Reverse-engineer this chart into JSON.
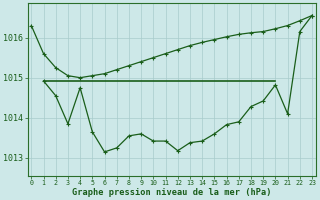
{
  "line1": {
    "x": [
      0,
      1,
      2,
      3,
      4,
      5,
      6,
      7,
      8,
      9,
      10,
      11,
      12,
      13,
      14,
      15,
      16,
      17,
      18,
      19,
      20,
      21,
      22,
      23
    ],
    "y": [
      1016.3,
      1015.6,
      1015.25,
      1015.05,
      1015.0,
      1015.05,
      1015.1,
      1015.2,
      1015.3,
      1015.4,
      1015.5,
      1015.6,
      1015.7,
      1015.8,
      1015.88,
      1015.95,
      1016.02,
      1016.08,
      1016.12,
      1016.15,
      1016.22,
      1016.3,
      1016.42,
      1016.55
    ]
  },
  "line2": {
    "x": [
      1,
      2,
      3,
      4,
      5,
      6,
      7,
      8,
      9,
      10,
      11,
      12,
      13,
      14,
      15,
      16,
      17,
      18,
      19,
      20
    ],
    "y": [
      1014.92,
      1014.92,
      1014.92,
      1014.92,
      1014.92,
      1014.92,
      1014.92,
      1014.92,
      1014.92,
      1014.92,
      1014.92,
      1014.92,
      1014.92,
      1014.92,
      1014.92,
      1014.92,
      1014.92,
      1014.92,
      1014.92,
      1014.92
    ]
  },
  "line3": {
    "x": [
      1,
      2,
      3,
      4,
      5,
      6,
      7,
      8,
      9,
      10,
      11,
      12,
      13,
      14,
      15,
      16,
      17,
      18,
      19,
      20,
      21,
      22,
      23
    ],
    "y": [
      1014.92,
      1014.55,
      1013.85,
      1014.75,
      1013.65,
      1013.15,
      1013.25,
      1013.55,
      1013.6,
      1013.42,
      1013.42,
      1013.18,
      1013.38,
      1013.42,
      1013.6,
      1013.83,
      1013.9,
      1014.28,
      1014.42,
      1014.82,
      1014.1,
      1016.15,
      1016.55
    ]
  },
  "line_color": "#1a5e1a",
  "bg_color": "#cde8e8",
  "grid_color": "#a8cccc",
  "title": "Graphe pression niveau de la mer (hPa)",
  "yticks": [
    1013,
    1014,
    1015,
    1016
  ],
  "ylim": [
    1012.55,
    1016.85
  ],
  "xlim": [
    -0.3,
    23.3
  ]
}
